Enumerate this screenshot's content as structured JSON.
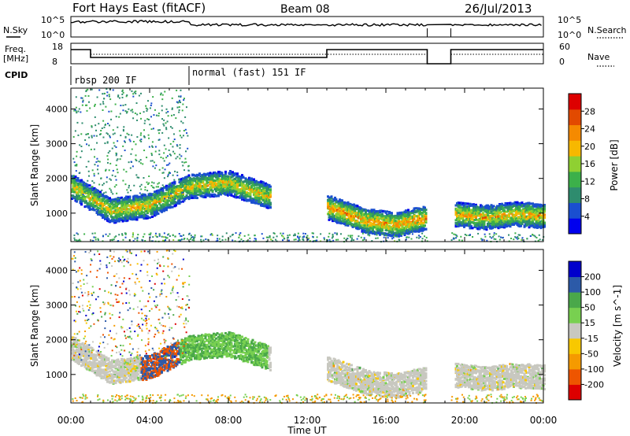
{
  "header": {
    "station": "Fort Hays East (fitACF)",
    "beam": "Beam 08",
    "date": "26/Jul/2013"
  },
  "status_panels": {
    "nsky_label": "N.Sky",
    "nsearch_label": "N.Search",
    "noise_ticks": [
      "10^5",
      "10^0"
    ],
    "freq_label": "Freq.",
    "freq_unit": "[MHz]",
    "freq_ticks": [
      "18",
      "8"
    ],
    "nave_label": "Nave",
    "nave_ticks": [
      "60",
      "0"
    ],
    "cpid_label": "CPID",
    "cpid_modes": [
      {
        "name": "rbsp 200 IF",
        "start_hour": 0
      },
      {
        "name": "normal (fast) 151 IF",
        "start_hour": 6
      }
    ]
  },
  "chart_data": [
    {
      "type": "heatmap",
      "title": "Power",
      "xlabel": "Time UT",
      "ylabel": "Slant Range [km]",
      "x_range_hours": [
        0,
        24
      ],
      "x_ticks": [
        "00:00",
        "04:00",
        "08:00",
        "12:00",
        "16:00",
        "20:00",
        "00:00"
      ],
      "y_range_km": [
        180,
        4600
      ],
      "y_ticks": [
        "1000",
        "2000",
        "3000",
        "4000"
      ],
      "colorbar_label": "Power [dB]",
      "colorbar_ticks": [
        "4",
        "8",
        "12",
        "16",
        "20",
        "24",
        "28"
      ],
      "colorbar_range": [
        0,
        30
      ],
      "colorscale": [
        "#0000ee",
        "#1a4fd0",
        "#2e8c6e",
        "#3cb04a",
        "#8fd032",
        "#f7b800",
        "#f58a00",
        "#e24a00",
        "#dd0000"
      ],
      "data_gap_hours": [
        18.1,
        19.3
      ],
      "echo_bands": [
        {
          "hours": [
            0,
            2,
            4,
            6,
            8,
            10.1
          ],
          "center_km": [
            1800,
            1100,
            1250,
            1800,
            1900,
            1500
          ],
          "peak_db": 22
        },
        {
          "hours": [
            13,
            15,
            16.5,
            18
          ],
          "center_km": [
            1200,
            800,
            700,
            900
          ],
          "peak_db": 26
        },
        {
          "hours": [
            19.5,
            21,
            22.5,
            24
          ],
          "center_km": [
            1000,
            900,
            1000,
            950
          ],
          "peak_db": 24
        }
      ]
    },
    {
      "type": "heatmap",
      "title": "Velocity",
      "xlabel": "Time UT",
      "ylabel": "Slant Range [km]",
      "x_range_hours": [
        0,
        24
      ],
      "x_ticks": [
        "00:00",
        "04:00",
        "08:00",
        "12:00",
        "16:00",
        "20:00",
        "00:00"
      ],
      "y_range_km": [
        180,
        4600
      ],
      "y_ticks": [
        "1000",
        "2000",
        "3000",
        "4000"
      ],
      "colorbar_label": "Velocity [m s^-1]",
      "colorbar_ticks": [
        "200",
        "100",
        "50",
        "15",
        "-15",
        "-50",
        "-100",
        "-200"
      ],
      "colorbar_range": [
        -250,
        250
      ],
      "colorscale": [
        "#dd0000",
        "#ee5500",
        "#f59a00",
        "#f8c800",
        "#c8c8c0",
        "#78d050",
        "#4aa84a",
        "#2c5aa8",
        "#0000cc"
      ],
      "ground_scatter_color": "#c8c8c0",
      "data_gap_hours": [
        18.1,
        19.3
      ]
    }
  ]
}
